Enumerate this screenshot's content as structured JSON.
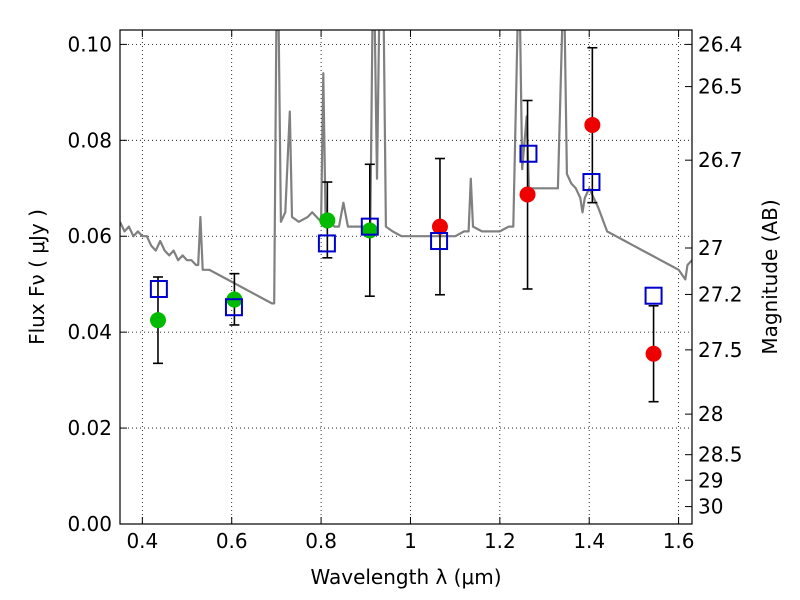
{
  "chart_data": {
    "type": "scatter",
    "xlabel": "Wavelength  λ (μm)",
    "ylabel": "Flux  Fν  ( μJy )",
    "ylabel_right": "Magnitude (AB)",
    "xlim": [
      0.35,
      1.63
    ],
    "ylim": [
      0.0,
      0.103
    ],
    "x_ticks": [
      "0.4",
      "0.6",
      "0.8",
      "1",
      "1.2",
      "1.4",
      "1.6"
    ],
    "x_tick_values": [
      0.4,
      0.6,
      0.8,
      1.0,
      1.2,
      1.4,
      1.6
    ],
    "y_ticks": [
      "0.00",
      "0.02",
      "0.04",
      "0.06",
      "0.08",
      "0.10"
    ],
    "y_tick_values": [
      0.0,
      0.02,
      0.04,
      0.06,
      0.08,
      0.1
    ],
    "mag_ticks": [
      "26.4",
      "26.5",
      "26.7",
      "27",
      "27.2",
      "27.5",
      "28",
      "28.5",
      "29",
      "30"
    ],
    "mag_tick_values": [
      26.4,
      26.5,
      26.7,
      27.0,
      27.2,
      27.5,
      28.0,
      28.5,
      29.0,
      30.0
    ],
    "grid": true,
    "colors": {
      "spectrum": "#808080",
      "green_points": "#00bb00",
      "red_points": "#ee0000",
      "model_squares": "#0000cc",
      "errorbars": "#000000"
    },
    "series": [
      {
        "role": "spectrum",
        "type": "line",
        "points": [
          [
            0.35,
            0.063
          ],
          [
            0.36,
            0.061
          ],
          [
            0.37,
            0.062
          ],
          [
            0.38,
            0.06
          ],
          [
            0.39,
            0.061
          ],
          [
            0.4,
            0.06
          ],
          [
            0.41,
            0.06
          ],
          [
            0.42,
            0.058
          ],
          [
            0.43,
            0.057
          ],
          [
            0.44,
            0.059
          ],
          [
            0.45,
            0.057
          ],
          [
            0.46,
            0.056
          ],
          [
            0.47,
            0.057
          ],
          [
            0.48,
            0.055
          ],
          [
            0.49,
            0.056
          ],
          [
            0.5,
            0.055
          ],
          [
            0.51,
            0.055
          ],
          [
            0.52,
            0.054
          ],
          [
            0.525,
            0.054
          ],
          [
            0.53,
            0.064
          ],
          [
            0.535,
            0.053
          ],
          [
            0.55,
            0.053
          ],
          [
            0.57,
            0.052
          ],
          [
            0.59,
            0.051
          ],
          [
            0.61,
            0.05
          ],
          [
            0.63,
            0.049
          ],
          [
            0.65,
            0.048
          ],
          [
            0.67,
            0.047
          ],
          [
            0.69,
            0.046
          ],
          [
            0.695,
            0.046
          ],
          [
            0.7,
            0.105
          ],
          [
            0.705,
            0.105
          ],
          [
            0.71,
            0.063
          ],
          [
            0.72,
            0.065
          ],
          [
            0.73,
            0.086
          ],
          [
            0.735,
            0.064
          ],
          [
            0.75,
            0.063
          ],
          [
            0.77,
            0.064
          ],
          [
            0.78,
            0.065
          ],
          [
            0.79,
            0.064
          ],
          [
            0.8,
            0.063
          ],
          [
            0.805,
            0.094
          ],
          [
            0.81,
            0.063
          ],
          [
            0.82,
            0.063
          ],
          [
            0.83,
            0.062
          ],
          [
            0.84,
            0.062
          ],
          [
            0.85,
            0.067
          ],
          [
            0.86,
            0.062
          ],
          [
            0.88,
            0.062
          ],
          [
            0.9,
            0.062
          ],
          [
            0.91,
            0.062
          ],
          [
            0.915,
            0.105
          ],
          [
            0.92,
            0.105
          ],
          [
            0.925,
            0.072
          ],
          [
            0.93,
            0.105
          ],
          [
            0.935,
            0.105
          ],
          [
            0.94,
            0.105
          ],
          [
            0.945,
            0.062
          ],
          [
            0.96,
            0.061
          ],
          [
            0.98,
            0.06
          ],
          [
            1.0,
            0.06
          ],
          [
            1.02,
            0.06
          ],
          [
            1.04,
            0.06
          ],
          [
            1.06,
            0.06
          ],
          [
            1.08,
            0.06
          ],
          [
            1.1,
            0.06
          ],
          [
            1.12,
            0.061
          ],
          [
            1.13,
            0.061
          ],
          [
            1.135,
            0.072
          ],
          [
            1.14,
            0.062
          ],
          [
            1.16,
            0.061
          ],
          [
            1.18,
            0.061
          ],
          [
            1.2,
            0.061
          ],
          [
            1.22,
            0.062
          ],
          [
            1.23,
            0.062
          ],
          [
            1.24,
            0.105
          ],
          [
            1.245,
            0.105
          ],
          [
            1.25,
            0.074
          ],
          [
            1.26,
            0.085
          ],
          [
            1.265,
            0.07
          ],
          [
            1.28,
            0.07
          ],
          [
            1.3,
            0.07
          ],
          [
            1.32,
            0.07
          ],
          [
            1.33,
            0.07
          ],
          [
            1.34,
            0.105
          ],
          [
            1.345,
            0.105
          ],
          [
            1.35,
            0.073
          ],
          [
            1.36,
            0.071
          ],
          [
            1.37,
            0.07
          ],
          [
            1.38,
            0.068
          ],
          [
            1.385,
            0.065
          ],
          [
            1.39,
            0.068
          ],
          [
            1.4,
            0.07
          ],
          [
            1.42,
            0.066
          ],
          [
            1.44,
            0.061
          ],
          [
            1.46,
            0.06
          ],
          [
            1.48,
            0.059
          ],
          [
            1.5,
            0.058
          ],
          [
            1.52,
            0.057
          ],
          [
            1.54,
            0.056
          ],
          [
            1.56,
            0.055
          ],
          [
            1.58,
            0.054
          ],
          [
            1.6,
            0.053
          ],
          [
            1.615,
            0.051
          ],
          [
            1.62,
            0.054
          ],
          [
            1.63,
            0.055
          ]
        ]
      },
      {
        "role": "observed-green",
        "type": "scatter",
        "points": [
          {
            "x": 0.435,
            "y": 0.0425,
            "ylo": 0.0335,
            "yhi": 0.0515
          },
          {
            "x": 0.606,
            "y": 0.0468,
            "ylo": 0.0415,
            "yhi": 0.0522
          },
          {
            "x": 0.814,
            "y": 0.0633,
            "ylo": 0.0555,
            "yhi": 0.0713
          },
          {
            "x": 0.909,
            "y": 0.0612,
            "ylo": 0.0475,
            "yhi": 0.075
          }
        ]
      },
      {
        "role": "observed-red",
        "type": "scatter",
        "points": [
          {
            "x": 1.066,
            "y": 0.062,
            "ylo": 0.0478,
            "yhi": 0.0762
          },
          {
            "x": 1.262,
            "y": 0.0687,
            "ylo": 0.049,
            "yhi": 0.0883
          },
          {
            "x": 1.407,
            "y": 0.0832,
            "ylo": 0.067,
            "yhi": 0.0993
          },
          {
            "x": 1.544,
            "y": 0.0355,
            "ylo": 0.0255,
            "yhi": 0.0455
          }
        ]
      },
      {
        "role": "model-squares",
        "type": "scatter",
        "points": [
          {
            "x": 0.437,
            "y": 0.049
          },
          {
            "x": 0.605,
            "y": 0.0452
          },
          {
            "x": 0.813,
            "y": 0.0585
          },
          {
            "x": 0.909,
            "y": 0.062
          },
          {
            "x": 1.064,
            "y": 0.059
          },
          {
            "x": 1.264,
            "y": 0.0772
          },
          {
            "x": 1.405,
            "y": 0.0713
          },
          {
            "x": 1.544,
            "y": 0.0476
          }
        ]
      }
    ]
  }
}
